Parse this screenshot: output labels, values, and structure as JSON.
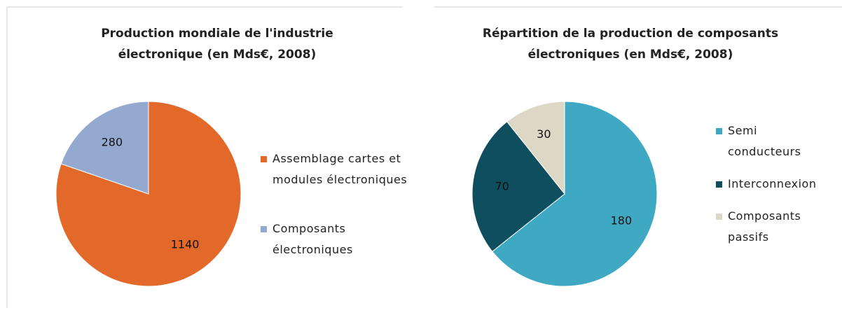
{
  "chart_data": [
    {
      "type": "pie",
      "title": "Production mondiale de l'industrie électronique (en Mds€, 2008)",
      "categories": [
        "Assemblage cartes et modules électroniques",
        "Composants électroniques"
      ],
      "values": [
        1140,
        280
      ],
      "colors": [
        "#e2692a",
        "#94a9d0"
      ]
    },
    {
      "type": "pie",
      "title": "Répartition de la production de composants électroniques (en Mds€, 2008)",
      "categories": [
        "Semi conducteurs",
        "Interconnexion",
        "Composants passifs"
      ],
      "values": [
        180,
        70,
        30
      ],
      "colors": [
        "#3fa9c4",
        "#0e4e5e",
        "#ddd8c6"
      ]
    }
  ]
}
